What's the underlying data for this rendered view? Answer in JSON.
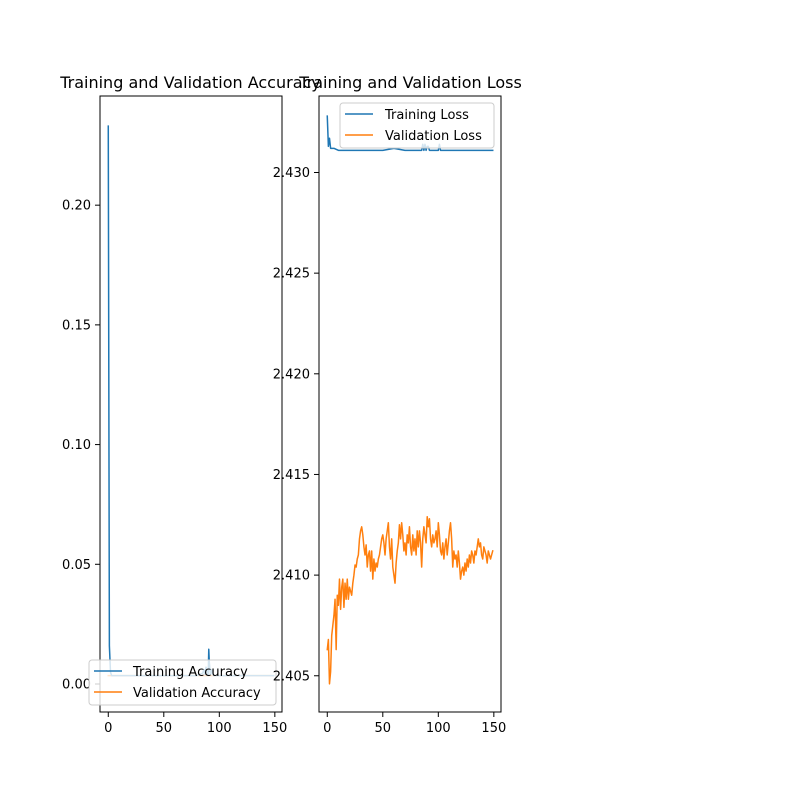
{
  "chart_data": [
    {
      "type": "line",
      "title": "Training and Validation Accuracy",
      "xlabel": "",
      "ylabel": "",
      "xlim": [
        -7.45,
        156.45
      ],
      "ylim": [
        -0.0117,
        0.2456
      ],
      "xticks": [
        0,
        50,
        100,
        150
      ],
      "yticks": [
        0.0,
        0.05,
        0.1,
        0.15,
        0.2
      ],
      "xtick_labels": [
        "0",
        "50",
        "100",
        "150"
      ],
      "ytick_labels": [
        "0.00",
        "0.05",
        "0.10",
        "0.15",
        "0.20"
      ],
      "grid": false,
      "legend_position": "lower right",
      "series": [
        {
          "name": "Training Accuracy",
          "color": "#1f77b4",
          "x": [
            0,
            1,
            2,
            3,
            5,
            10,
            20,
            30,
            40,
            50,
            60,
            70,
            80,
            85,
            86,
            87,
            88,
            89,
            90,
            90.5,
            91,
            92,
            93,
            94,
            95,
            100,
            110,
            120,
            130,
            140,
            149
          ],
          "y": [
            0.233,
            0.016,
            0.005,
            0.0035,
            0.0035,
            0.0035,
            0.0035,
            0.0035,
            0.0035,
            0.0035,
            0.0035,
            0.0035,
            0.0035,
            0.0045,
            0.006,
            0.004,
            0.007,
            0.005,
            0.0035,
            0.0145,
            0.009,
            0.004,
            0.006,
            0.004,
            0.0035,
            0.0035,
            0.0035,
            0.0035,
            0.0035,
            0.0035,
            0.0035
          ]
        },
        {
          "name": "Validation Accuracy",
          "color": "#ff7f0e",
          "x": [
            0,
            1,
            2,
            3,
            5,
            10,
            20,
            30,
            40,
            50,
            60,
            70,
            80,
            90,
            100,
            110,
            120,
            130,
            140,
            149
          ],
          "y": [
            0.0035,
            0.0035,
            0.0035,
            0.0035,
            0.0035,
            0.0035,
            0.0035,
            0.0035,
            0.0035,
            0.0035,
            0.0035,
            0.0035,
            0.0035,
            0.0035,
            0.0035,
            0.0035,
            0.0035,
            0.0035,
            0.0035,
            0.0035
          ]
        }
      ]
    },
    {
      "type": "line",
      "title": "Training and Validation Loss",
      "xlabel": "",
      "ylabel": "",
      "xlim": [
        -7.45,
        156.45
      ],
      "ylim": [
        2.4032,
        2.4338
      ],
      "xticks": [
        0,
        50,
        100,
        150
      ],
      "yticks": [
        2.405,
        2.41,
        2.415,
        2.42,
        2.425,
        2.43
      ],
      "xtick_labels": [
        "0",
        "50",
        "100",
        "150"
      ],
      "ytick_labels": [
        "2.405",
        "2.410",
        "2.415",
        "2.420",
        "2.425",
        "2.430"
      ],
      "grid": false,
      "legend_position": "upper center",
      "series": [
        {
          "name": "Training Loss",
          "color": "#1f77b4",
          "x": [
            0,
            1,
            2,
            3,
            4,
            6,
            10,
            20,
            30,
            40,
            50,
            60,
            70,
            80,
            85,
            86,
            87,
            88,
            89,
            90,
            91,
            92,
            95,
            100,
            101,
            102,
            110,
            120,
            130,
            140,
            149
          ],
          "y": [
            2.4328,
            2.4313,
            2.4317,
            2.4312,
            2.4312,
            2.4312,
            2.4311,
            2.4311,
            2.4311,
            2.4311,
            2.4311,
            2.4312,
            2.4311,
            2.4311,
            2.4311,
            2.4314,
            2.4311,
            2.4314,
            2.4311,
            2.4313,
            2.4313,
            2.4311,
            2.4311,
            2.4311,
            2.4314,
            2.4311,
            2.4311,
            2.4311,
            2.4311,
            2.4311,
            2.4311
          ]
        },
        {
          "name": "Validation Loss",
          "color": "#ff7f0e",
          "x": [
            0,
            1,
            2,
            3,
            4,
            5,
            6,
            7,
            8,
            9,
            10,
            11,
            12,
            13,
            14,
            15,
            16,
            17,
            18,
            19,
            20,
            21,
            22,
            23,
            24,
            25,
            26,
            27,
            28,
            29,
            30,
            31,
            32,
            33,
            34,
            35,
            36,
            37,
            38,
            39,
            40,
            41,
            42,
            43,
            44,
            45,
            46,
            47,
            48,
            49,
            50,
            51,
            52,
            53,
            54,
            55,
            56,
            57,
            58,
            59,
            60,
            61,
            62,
            63,
            64,
            65,
            66,
            67,
            68,
            69,
            70,
            71,
            72,
            73,
            74,
            75,
            76,
            77,
            78,
            79,
            80,
            81,
            82,
            83,
            84,
            85,
            86,
            87,
            88,
            89,
            90,
            91,
            92,
            93,
            94,
            95,
            96,
            97,
            98,
            99,
            100,
            101,
            102,
            103,
            104,
            105,
            106,
            107,
            108,
            109,
            110,
            111,
            112,
            113,
            114,
            115,
            116,
            117,
            118,
            119,
            120,
            121,
            122,
            123,
            124,
            125,
            126,
            127,
            128,
            129,
            130,
            131,
            132,
            133,
            134,
            135,
            136,
            137,
            138,
            139,
            140,
            141,
            142,
            143,
            144,
            145,
            146,
            147,
            148,
            149
          ],
          "y": [
            2.4063,
            2.4068,
            2.4046,
            2.4052,
            2.407,
            2.4075,
            2.408,
            2.4088,
            2.4063,
            2.409,
            2.4085,
            2.4098,
            2.4083,
            2.4094,
            2.4098,
            2.4084,
            2.4096,
            2.4088,
            2.4098,
            2.4088,
            2.4094,
            2.4092,
            2.409,
            2.4096,
            2.41,
            2.4105,
            2.4104,
            2.4108,
            2.411,
            2.4118,
            2.4122,
            2.4124,
            2.412,
            2.4114,
            2.411,
            2.4115,
            2.4104,
            2.411,
            2.4112,
            2.4102,
            2.4112,
            2.4098,
            2.4108,
            2.4102,
            2.4106,
            2.4104,
            2.4108,
            2.411,
            2.4114,
            2.4118,
            2.412,
            2.4116,
            2.411,
            2.4118,
            2.4122,
            2.4126,
            2.4114,
            2.4108,
            2.4118,
            2.4104,
            2.41,
            2.4096,
            2.4106,
            2.4112,
            2.4116,
            2.4125,
            2.4118,
            2.4126,
            2.412,
            2.4112,
            2.4116,
            2.411,
            2.412,
            2.4116,
            2.4124,
            2.4114,
            2.411,
            2.412,
            2.4112,
            2.4118,
            2.411,
            2.4122,
            2.4114,
            2.4122,
            2.4116,
            2.4104,
            2.4118,
            2.4124,
            2.412,
            2.4116,
            2.4129,
            2.4124,
            2.4128,
            2.4118,
            2.4114,
            2.412,
            2.4116,
            2.4118,
            2.4122,
            2.4114,
            2.4126,
            2.412,
            2.4112,
            2.411,
            2.4116,
            2.4108,
            2.4114,
            2.4118,
            2.411,
            2.4116,
            2.4122,
            2.4126,
            2.4118,
            2.4104,
            2.4112,
            2.4108,
            2.411,
            2.4104,
            2.4112,
            2.4106,
            2.4098,
            2.4102,
            2.4104,
            2.41,
            2.4106,
            2.4102,
            2.4108,
            2.4104,
            2.411,
            2.4106,
            2.4112,
            2.411,
            2.4106,
            2.4112,
            2.411,
            2.4114,
            2.4118,
            2.4114,
            2.4116,
            2.411,
            2.4108,
            2.4114,
            2.4112,
            2.411,
            2.4106,
            2.4112,
            2.411,
            2.4108,
            2.411,
            2.4112
          ]
        }
      ]
    }
  ]
}
